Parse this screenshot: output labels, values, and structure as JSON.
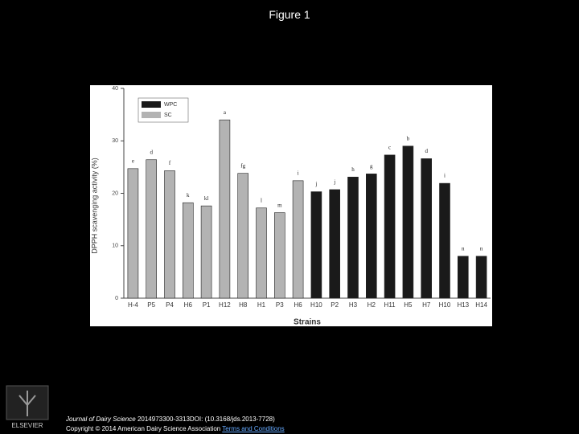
{
  "header": {
    "title": "Figure 1"
  },
  "chart_data": {
    "type": "bar",
    "y_label": "DPPH scavenging activity (%)",
    "x_label": "Strains",
    "categories": [
      "H-4",
      "P5",
      "P4",
      "H6",
      "P1",
      "H12",
      "H8",
      "H1",
      "P3",
      "H6",
      "H10",
      "P2",
      "H3",
      "H2",
      "H11",
      "H5",
      "H7",
      "H10",
      "H13",
      "H14"
    ],
    "series": [
      {
        "name": "WPC",
        "color": "#1a1a1a",
        "values": [
          null,
          null,
          null,
          null,
          null,
          null,
          null,
          null,
          null,
          null,
          20.3,
          20.7,
          23.1,
          23.7,
          27.3,
          29.0,
          26.6,
          21.9,
          8.0,
          8.0
        ]
      },
      {
        "name": "SC",
        "color": "#b3b3b3",
        "values": [
          24.7,
          26.4,
          24.3,
          18.2,
          17.6,
          34.0,
          23.8,
          17.2,
          16.3,
          22.4,
          null,
          null,
          null,
          null,
          null,
          null,
          null,
          null,
          null,
          null
        ]
      }
    ],
    "annotations": [
      "e",
      "d",
      "f",
      "k",
      "kl",
      "a",
      "fg",
      "l",
      "m",
      "i",
      "j",
      "j",
      "h",
      "g",
      "c",
      "b",
      "d",
      "i",
      "n",
      "n"
    ],
    "ylim": [
      0,
      40
    ],
    "yticks": [
      0,
      10,
      20,
      30,
      40
    ],
    "legend": "upper left"
  },
  "footer": {
    "journal": "Journal of Dairy Science",
    "citation": "2014973300-3313DOI: (10.3168/jds.2013-7728)",
    "copyright": "Copyright © 2014 American Dairy Science Association",
    "link": "Terms and Conditions",
    "logo": "ELSEVIER"
  }
}
